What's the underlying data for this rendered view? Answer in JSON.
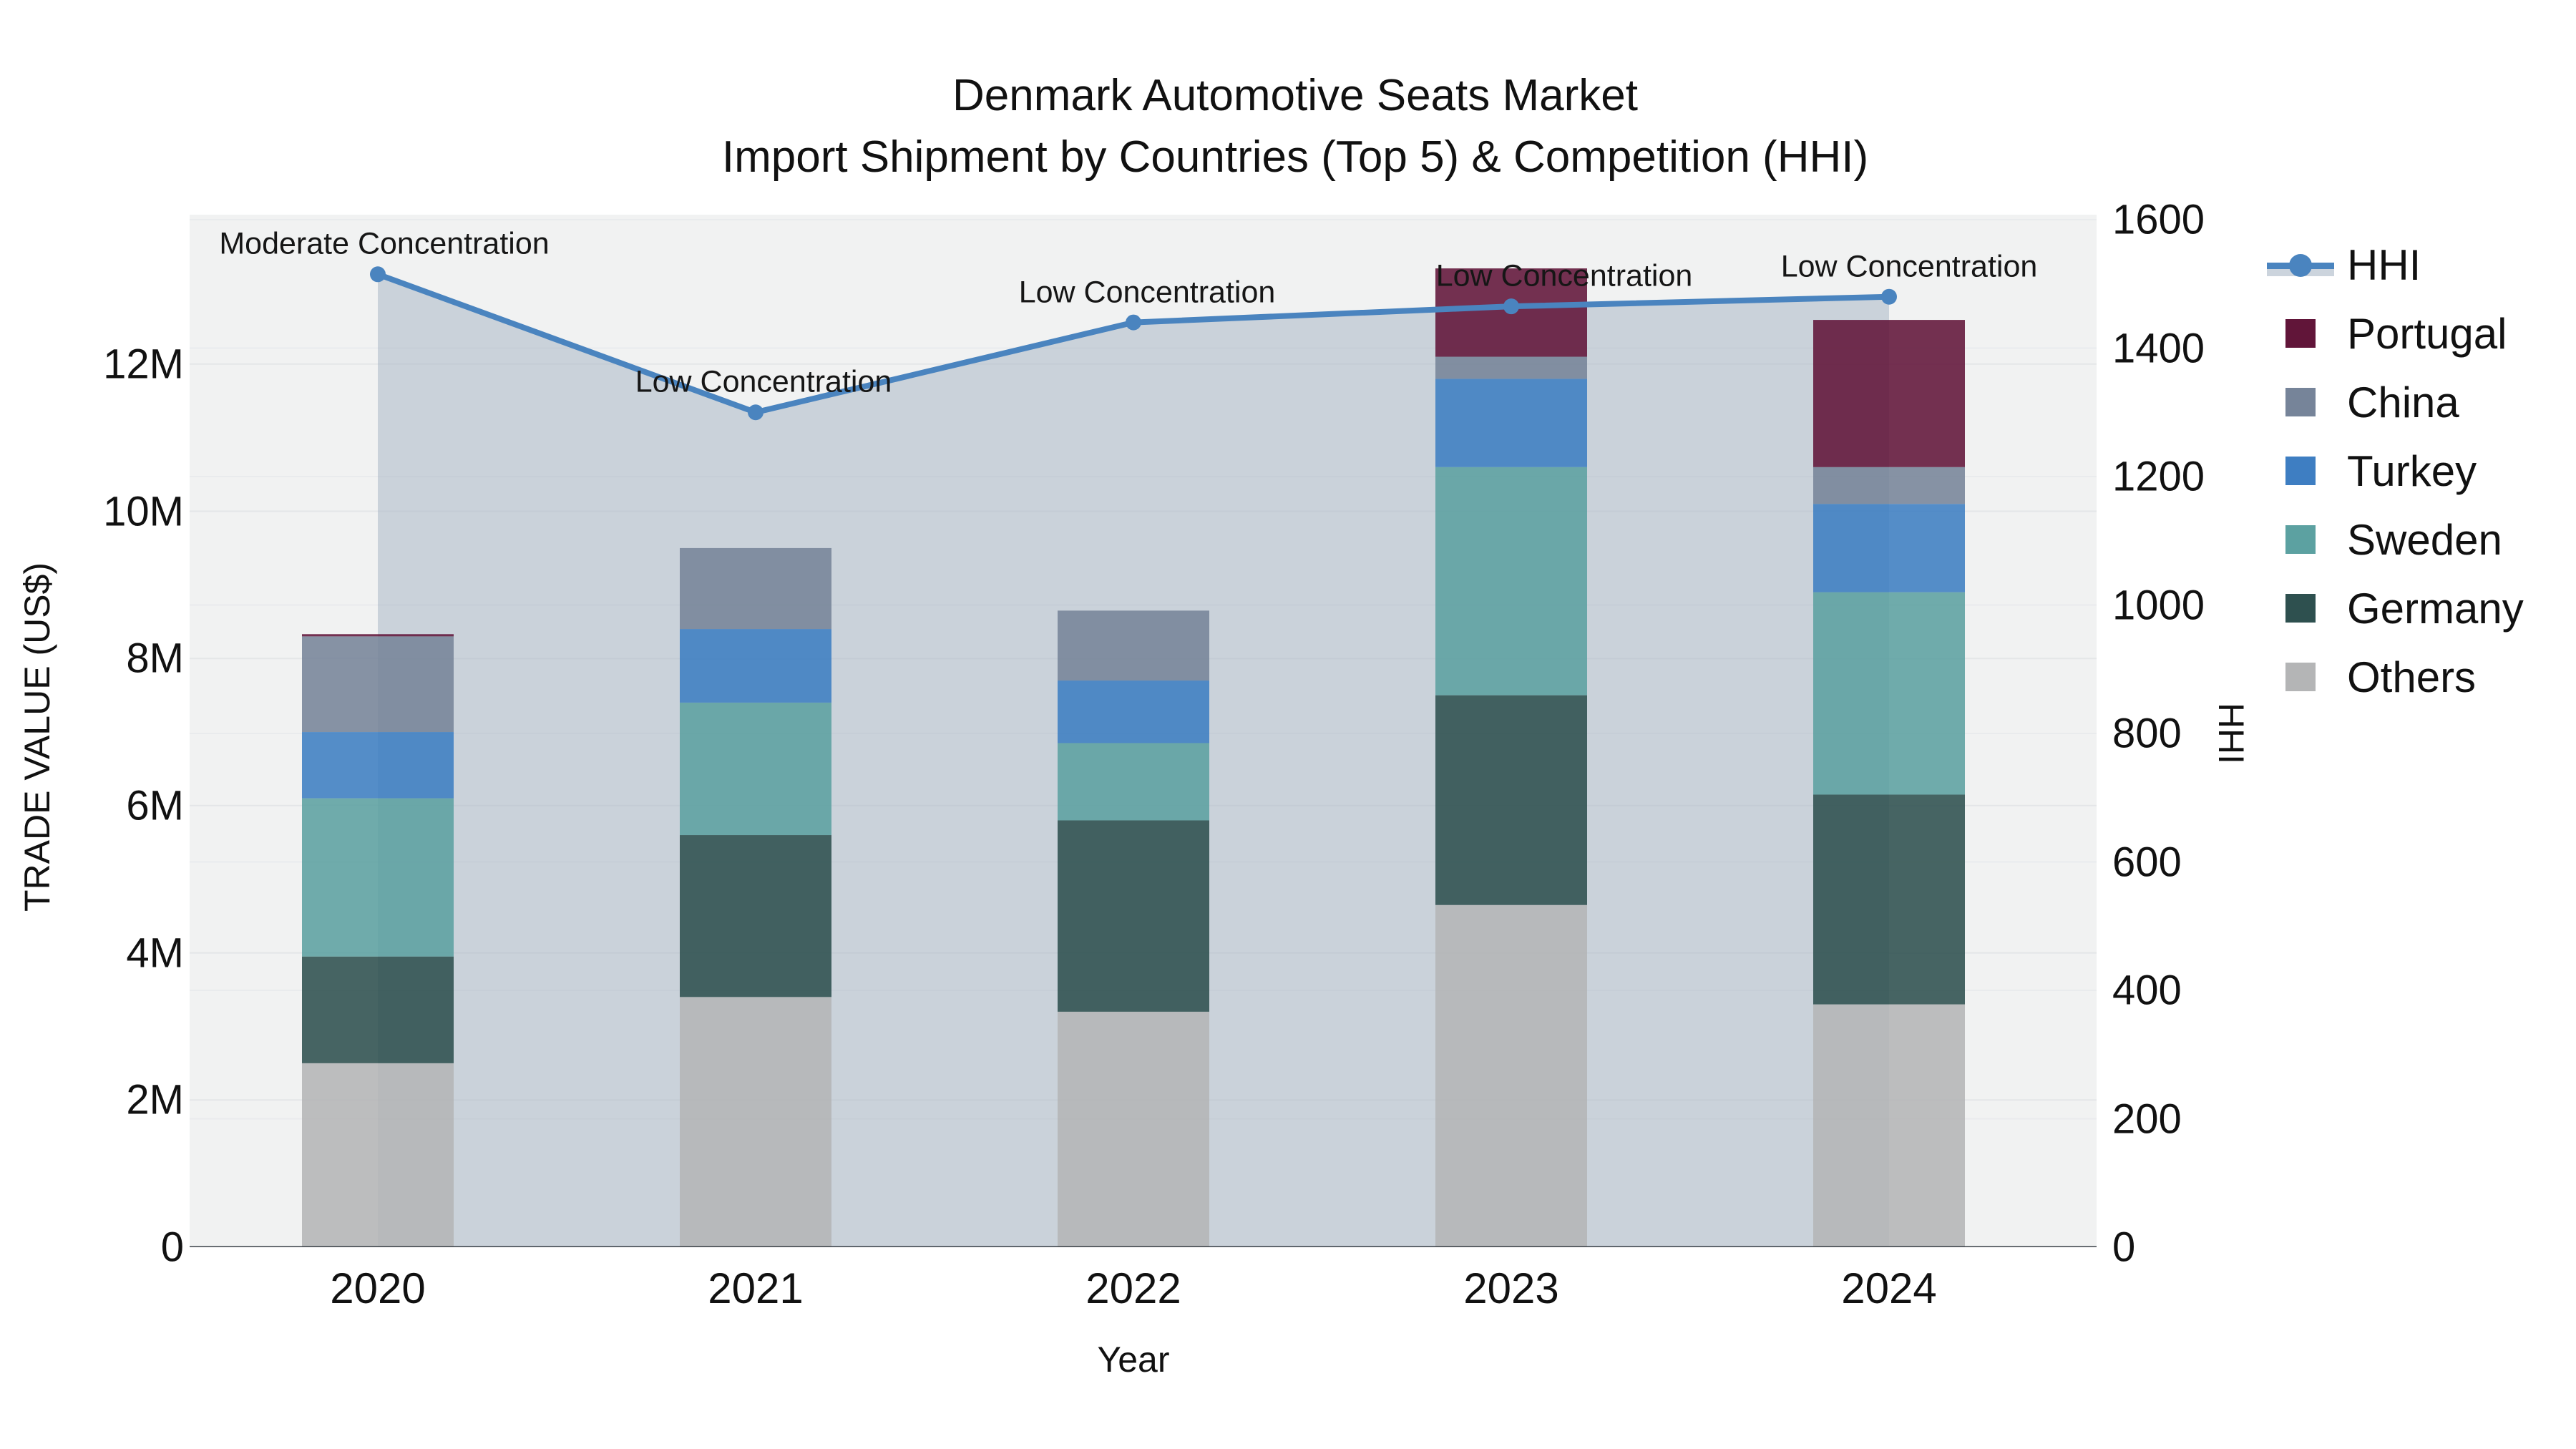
{
  "title": {
    "line1": "Denmark Automotive Seats Market",
    "line2": "Import Shipment by Countries (Top 5) & Competition (HHI)"
  },
  "axes": {
    "left": {
      "title": "TRADE VALUE (US$)",
      "ticks": [
        {
          "label": "0",
          "value": 0
        },
        {
          "label": "2M",
          "value": 2
        },
        {
          "label": "4M",
          "value": 4
        },
        {
          "label": "6M",
          "value": 6
        },
        {
          "label": "8M",
          "value": 8
        },
        {
          "label": "10M",
          "value": 10
        },
        {
          "label": "12M",
          "value": 12
        }
      ]
    },
    "right": {
      "title": "HHI",
      "ticks": [
        {
          "label": "0",
          "value": 0
        },
        {
          "label": "200",
          "value": 200
        },
        {
          "label": "400",
          "value": 400
        },
        {
          "label": "600",
          "value": 600
        },
        {
          "label": "800",
          "value": 800
        },
        {
          "label": "1000",
          "value": 1000
        },
        {
          "label": "1200",
          "value": 1200
        },
        {
          "label": "1400",
          "value": 1400
        },
        {
          "label": "1600",
          "value": 1600
        }
      ]
    },
    "x": {
      "title": "Year"
    }
  },
  "chart_data": {
    "type": "stacked-bar+line",
    "categories": [
      "2020",
      "2021",
      "2022",
      "2023",
      "2024"
    ],
    "value_unit": "M US$",
    "ylim_left": [
      0,
      14.03
    ],
    "ylim_right": [
      0,
      1608
    ],
    "grid": true,
    "legend_position": "right",
    "series": [
      {
        "name": "Others",
        "color": "#b4b5b6",
        "values": [
          2.5,
          3.4,
          3.2,
          4.65,
          3.3
        ]
      },
      {
        "name": "Germany",
        "color": "#2e504f",
        "values": [
          1.45,
          2.2,
          2.6,
          2.85,
          2.85
        ]
      },
      {
        "name": "Sweden",
        "color": "#5ca1a1",
        "values": [
          2.15,
          1.8,
          1.05,
          3.1,
          2.75
        ]
      },
      {
        "name": "Turkey",
        "color": "#3e7ec2",
        "values": [
          0.9,
          1.0,
          0.85,
          1.2,
          1.2
        ]
      },
      {
        "name": "China",
        "color": "#768499",
        "values": [
          1.3,
          1.1,
          0.95,
          0.3,
          0.5
        ]
      },
      {
        "name": "Portugal",
        "color": "#611539",
        "values": [
          0.03,
          0.0,
          0.0,
          1.2,
          2.0
        ]
      }
    ],
    "line_series": {
      "name": "HHI",
      "color": "#4a84bf",
      "area_color": "rgba(164,178,194,0.5)",
      "values": [
        1515,
        1300,
        1440,
        1465,
        1480
      ]
    },
    "annotations": [
      {
        "category": "2020",
        "text": "Moderate Concentration",
        "dx": 9
      },
      {
        "category": "2021",
        "text": "Low Concentration",
        "dx": 11
      },
      {
        "category": "2022",
        "text": "Low Concentration",
        "dx": 19
      },
      {
        "category": "2023",
        "text": "Low Concentration",
        "dx": 74
      },
      {
        "category": "2024",
        "text": "Low Concentration",
        "dx": 28
      }
    ]
  },
  "legend": {
    "items": [
      {
        "name": "HHI",
        "type": "line",
        "color": "#4a84bf"
      },
      {
        "name": "Portugal",
        "type": "swatch",
        "color": "#611539"
      },
      {
        "name": "China",
        "type": "swatch",
        "color": "#768499"
      },
      {
        "name": "Turkey",
        "type": "swatch",
        "color": "#3e7ec2"
      },
      {
        "name": "Sweden",
        "type": "swatch",
        "color": "#5ca1a1"
      },
      {
        "name": "Germany",
        "type": "swatch",
        "color": "#2e504f"
      },
      {
        "name": "Others",
        "type": "swatch",
        "color": "#b4b5b6"
      }
    ]
  }
}
